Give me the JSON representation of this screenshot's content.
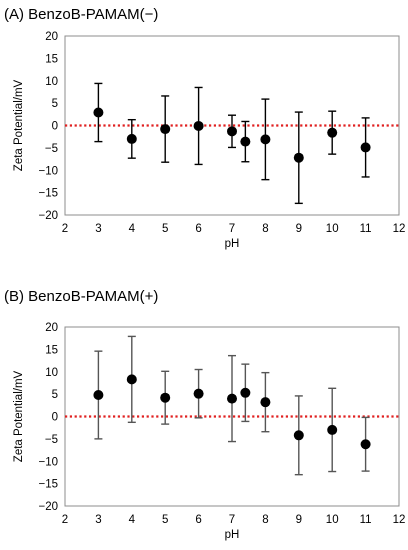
{
  "chart_data": [
    {
      "type": "scatter",
      "title": "(A) BenzoB-PAMAM(−)",
      "xlabel": "pH",
      "ylabel": "Zeta Potential/mV",
      "xlim": [
        2,
        12
      ],
      "ylim": [
        -20,
        20
      ],
      "xticks": [
        "2",
        "3",
        "4",
        "5",
        "6",
        "7",
        "8",
        "9",
        "10",
        "11",
        "12"
      ],
      "yticks": [
        "20",
        "15",
        "10",
        "5",
        "0",
        "−5",
        "−10",
        "−15",
        "−20"
      ],
      "grid": false,
      "legend": "none",
      "reference_line": {
        "y": 0,
        "style": "dotted",
        "color": "#e02020"
      },
      "marker_color": "#000000",
      "errorbar_color": "#000000",
      "points": [
        {
          "x": 3.0,
          "y": 2.9,
          "err": 6.5
        },
        {
          "x": 4.0,
          "y": -3.0,
          "err": 4.3
        },
        {
          "x": 5.0,
          "y": -0.8,
          "err": 7.4
        },
        {
          "x": 6.0,
          "y": -0.1,
          "err": 8.6
        },
        {
          "x": 7.0,
          "y": -1.3,
          "err": 3.6
        },
        {
          "x": 7.4,
          "y": -3.6,
          "err": 4.5
        },
        {
          "x": 8.0,
          "y": -3.1,
          "err": 9.0
        },
        {
          "x": 9.0,
          "y": -7.2,
          "err": 10.2
        },
        {
          "x": 10.0,
          "y": -1.6,
          "err": 4.8
        },
        {
          "x": 11.0,
          "y": -4.9,
          "err": 6.6
        }
      ]
    },
    {
      "type": "scatter",
      "title": "(B) BenzoB-PAMAM(+)",
      "xlabel": "pH",
      "ylabel": "Zeta Potential/mV",
      "xlim": [
        2,
        12
      ],
      "ylim": [
        -20,
        20
      ],
      "xticks": [
        "2",
        "3",
        "4",
        "5",
        "6",
        "7",
        "8",
        "9",
        "10",
        "11",
        "12"
      ],
      "yticks": [
        "20",
        "15",
        "10",
        "5",
        "0",
        "−5",
        "−10",
        "−15",
        "−20"
      ],
      "grid": false,
      "legend": "none",
      "reference_line": {
        "y": 0,
        "style": "dotted",
        "color": "#e02020"
      },
      "marker_color": "#000000",
      "errorbar_color": "#555555",
      "points": [
        {
          "x": 3.0,
          "y": 4.8,
          "err": 9.8
        },
        {
          "x": 4.0,
          "y": 8.3,
          "err": 9.6
        },
        {
          "x": 5.0,
          "y": 4.2,
          "err": 5.9
        },
        {
          "x": 6.0,
          "y": 5.1,
          "err": 5.4
        },
        {
          "x": 7.0,
          "y": 4.0,
          "err": 9.6
        },
        {
          "x": 7.4,
          "y": 5.3,
          "err": 6.4
        },
        {
          "x": 8.0,
          "y": 3.2,
          "err": 6.6
        },
        {
          "x": 9.0,
          "y": -4.2,
          "err": 8.8
        },
        {
          "x": 10.0,
          "y": -3.0,
          "err": 9.3
        },
        {
          "x": 11.0,
          "y": -6.2,
          "err": 6.0
        }
      ]
    }
  ]
}
